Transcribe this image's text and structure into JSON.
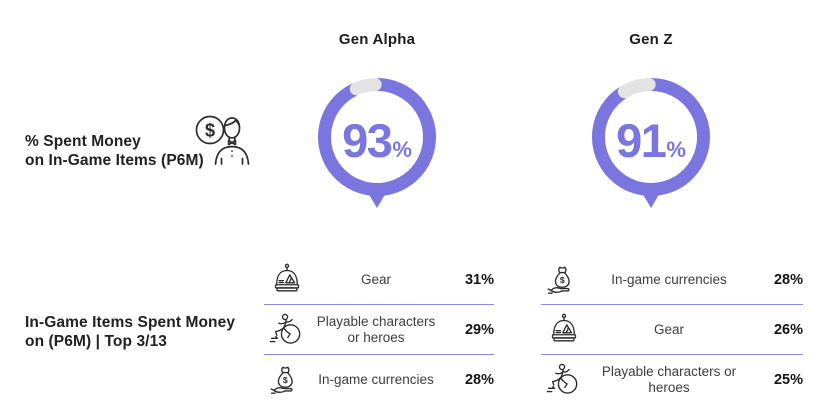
{
  "colors": {
    "accent": "#7b75e0",
    "track": "#e3e3e3",
    "divider": "#8d88e2",
    "text_dark": "#1f1f1f",
    "text_label": "#3d3d3d"
  },
  "ui": {
    "percent_sign": "%"
  },
  "labels": {
    "spent_money_1": "% Spent Money",
    "spent_money_2": "on In-Game Items (P6M)",
    "items_top_1": "In-Game Items Spent Money",
    "items_top_2": "on (P6M) | Top 3/13"
  },
  "columns": [
    {
      "title": "Gen Alpha",
      "value": 93,
      "items": [
        {
          "icon": "helmet-gear-icon",
          "label": "Gear",
          "value": "31%"
        },
        {
          "icon": "running-hero-icon",
          "label": "Playable characters or heroes",
          "value": "29%"
        },
        {
          "icon": "money-bag-hand-icon",
          "label": "In-game currencies",
          "value": "28%"
        }
      ]
    },
    {
      "title": "Gen Z",
      "value": 91,
      "items": [
        {
          "icon": "money-bag-hand-icon",
          "label": "In-game currencies",
          "value": "28%"
        },
        {
          "icon": "helmet-gear-icon",
          "label": "Gear",
          "value": "26%"
        },
        {
          "icon": "running-hero-icon",
          "label": "Playable characters or heroes",
          "value": "25%"
        }
      ]
    }
  ],
  "chart_data": [
    {
      "type": "pie",
      "subtype": "donut-gauge",
      "title": "Gen Alpha",
      "metric": "% Spent Money on In-Game Items (P6M)",
      "value": 93,
      "unit": "%",
      "remainder": 7,
      "colors": {
        "filled": "#7b75e0",
        "remainder": "#e3e3e3"
      }
    },
    {
      "type": "pie",
      "subtype": "donut-gauge",
      "title": "Gen Z",
      "metric": "% Spent Money on In-Game Items (P6M)",
      "value": 91,
      "unit": "%",
      "remainder": 9,
      "colors": {
        "filled": "#7b75e0",
        "remainder": "#e3e3e3"
      }
    },
    {
      "type": "table",
      "title": "In-Game Items Spent Money on (P6M) | Top 3/13",
      "series": [
        {
          "name": "Gen Alpha",
          "categories": [
            "Gear",
            "Playable characters or heroes",
            "In-game currencies"
          ],
          "values": [
            31,
            29,
            28
          ],
          "unit": "%"
        },
        {
          "name": "Gen Z",
          "categories": [
            "In-game currencies",
            "Gear",
            "Playable characters or heroes"
          ],
          "values": [
            28,
            26,
            25
          ],
          "unit": "%"
        }
      ]
    }
  ]
}
